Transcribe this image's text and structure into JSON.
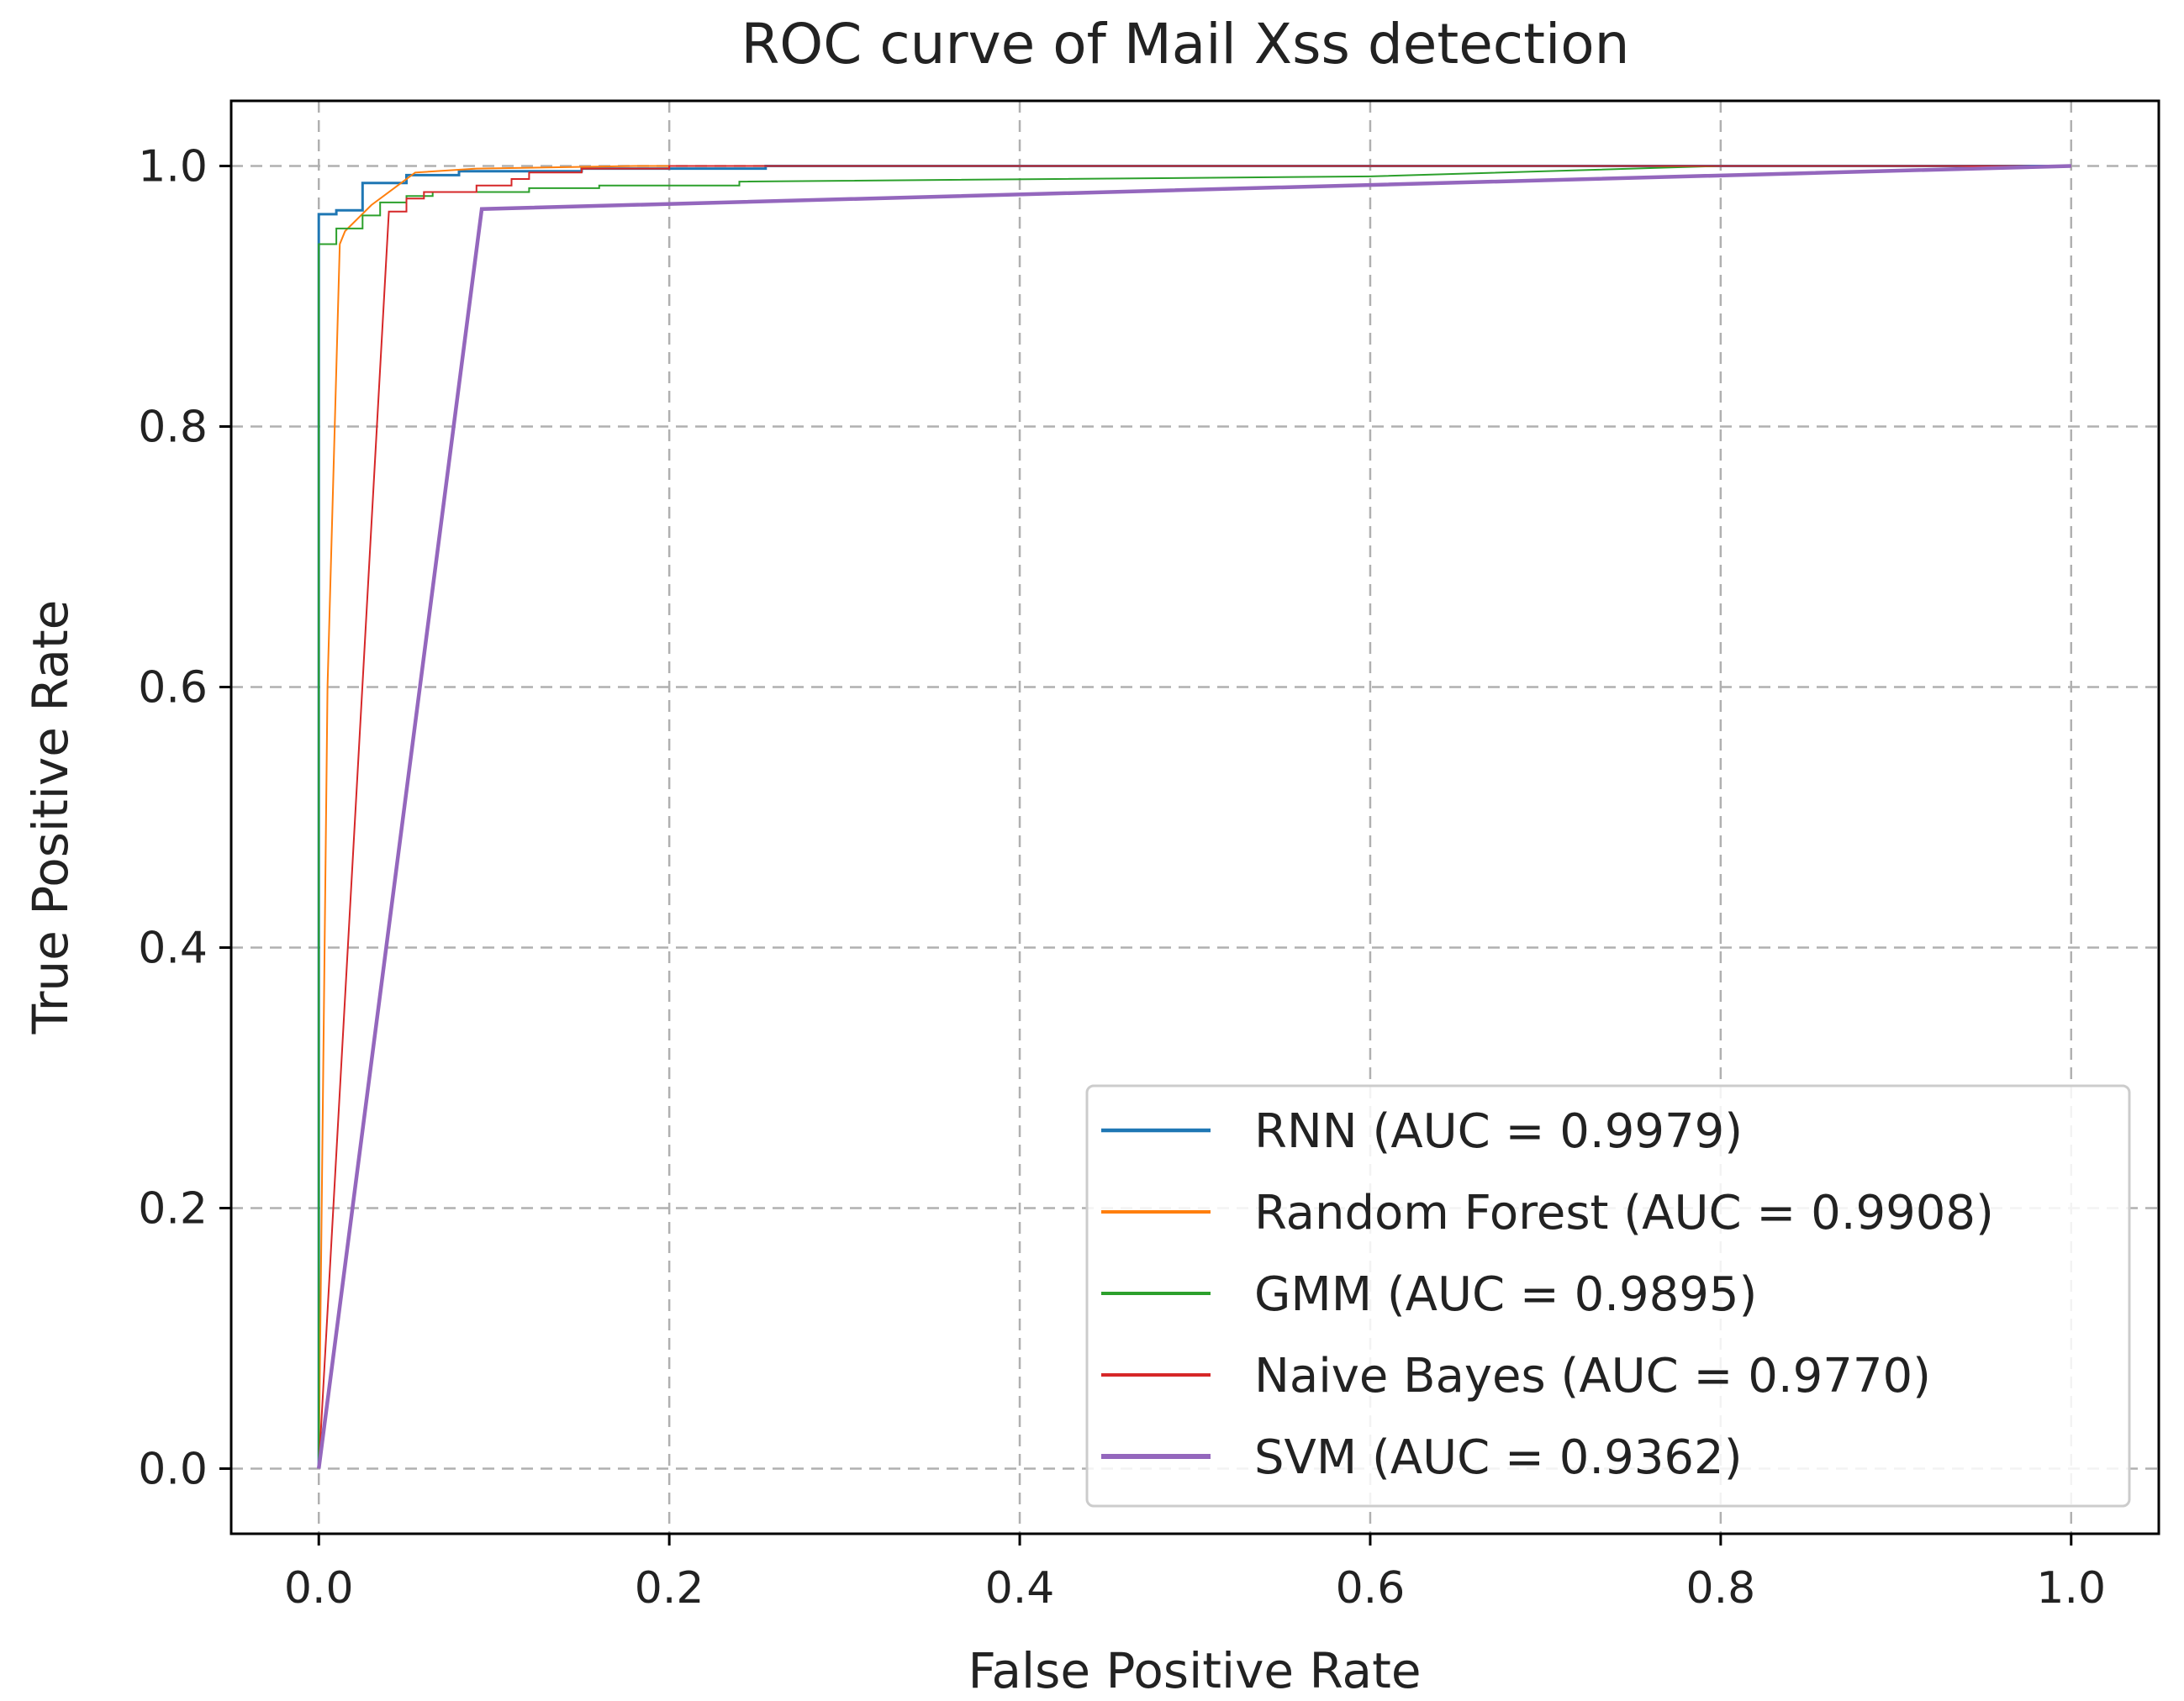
{
  "chart_data": {
    "type": "line",
    "title": "ROC curve of Mail Xss detection",
    "xlabel": "False Positive Rate",
    "ylabel": "True Positive Rate",
    "xlim": [
      -0.05,
      1.05
    ],
    "ylim": [
      -0.05,
      1.05
    ],
    "grid": true,
    "legend_position": "lower-right",
    "xticks": [
      0.0,
      0.2,
      0.4,
      0.6,
      0.8,
      1.0
    ],
    "yticks": [
      0.0,
      0.2,
      0.4,
      0.6,
      0.8,
      1.0
    ],
    "xtick_labels": [
      "0.0",
      "0.2",
      "0.4",
      "0.6",
      "0.8",
      "1.0"
    ],
    "ytick_labels": [
      "0.0",
      "0.2",
      "0.4",
      "0.6",
      "0.8",
      "1.0"
    ],
    "series": [
      {
        "name": "RNN (AUC = 0.9979)",
        "color": "#1f77b4",
        "width": 3,
        "points": [
          [
            0.0,
            0.0
          ],
          [
            0.0,
            0.963
          ],
          [
            0.01,
            0.963
          ],
          [
            0.01,
            0.966
          ],
          [
            0.025,
            0.966
          ],
          [
            0.025,
            0.987
          ],
          [
            0.05,
            0.987
          ],
          [
            0.05,
            0.993
          ],
          [
            0.08,
            0.993
          ],
          [
            0.08,
            0.996
          ],
          [
            0.15,
            0.996
          ],
          [
            0.15,
            0.998
          ],
          [
            0.255,
            0.998
          ],
          [
            0.255,
            1.0
          ],
          [
            1.0,
            1.0
          ]
        ]
      },
      {
        "name": "Random Forest (AUC = 0.9908)",
        "color": "#ff7f0e",
        "width": 2,
        "points": [
          [
            0.0,
            0.0
          ],
          [
            0.005,
            0.6
          ],
          [
            0.012,
            0.94
          ],
          [
            0.015,
            0.95
          ],
          [
            0.03,
            0.97
          ],
          [
            0.045,
            0.985
          ],
          [
            0.055,
            0.995
          ],
          [
            0.09,
            0.998
          ],
          [
            0.18,
            1.0
          ],
          [
            1.0,
            1.0
          ]
        ]
      },
      {
        "name": "GMM (AUC = 0.9895)",
        "color": "#2ca02c",
        "width": 2,
        "points": [
          [
            0.0,
            0.0
          ],
          [
            0.0,
            0.94
          ],
          [
            0.01,
            0.94
          ],
          [
            0.01,
            0.952
          ],
          [
            0.025,
            0.952
          ],
          [
            0.025,
            0.962
          ],
          [
            0.035,
            0.962
          ],
          [
            0.035,
            0.972
          ],
          [
            0.05,
            0.972
          ],
          [
            0.05,
            0.977
          ],
          [
            0.065,
            0.977
          ],
          [
            0.065,
            0.98
          ],
          [
            0.12,
            0.98
          ],
          [
            0.12,
            0.983
          ],
          [
            0.16,
            0.983
          ],
          [
            0.16,
            0.985
          ],
          [
            0.24,
            0.985
          ],
          [
            0.24,
            0.988
          ],
          [
            0.6,
            0.992
          ],
          [
            0.8,
            1.0
          ],
          [
            1.0,
            1.0
          ]
        ]
      },
      {
        "name": "Naive Bayes (AUC = 0.9770)",
        "color": "#d62728",
        "width": 2,
        "points": [
          [
            0.0,
            0.0
          ],
          [
            0.04,
            0.965
          ],
          [
            0.05,
            0.965
          ],
          [
            0.05,
            0.975
          ],
          [
            0.06,
            0.975
          ],
          [
            0.06,
            0.98
          ],
          [
            0.09,
            0.98
          ],
          [
            0.09,
            0.985
          ],
          [
            0.11,
            0.985
          ],
          [
            0.11,
            0.99
          ],
          [
            0.12,
            0.99
          ],
          [
            0.12,
            0.995
          ],
          [
            0.15,
            0.995
          ],
          [
            0.15,
            0.998
          ],
          [
            0.2,
            0.998
          ],
          [
            0.2,
            1.0
          ],
          [
            1.0,
            1.0
          ]
        ]
      },
      {
        "name": "SVM (AUC = 0.9362)",
        "color": "#9467bd",
        "width": 4.5,
        "points": [
          [
            0.0,
            0.0
          ],
          [
            0.093,
            0.967
          ],
          [
            1.0,
            1.0
          ]
        ]
      }
    ]
  }
}
